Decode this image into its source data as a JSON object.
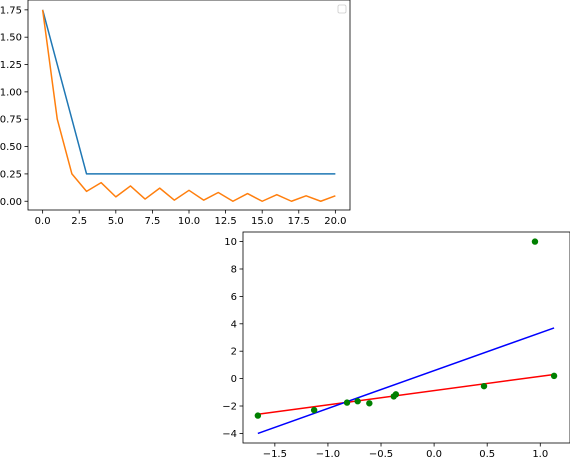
{
  "chart_data": [
    {
      "type": "line",
      "title": "",
      "xlabel": "",
      "ylabel": "",
      "xlim": [
        -1,
        21
      ],
      "ylim": [
        -0.08,
        1.84
      ],
      "grid": false,
      "legend": {
        "placement": "upper-right",
        "entries": []
      },
      "xticks": [
        0.0,
        2.5,
        5.0,
        7.5,
        10.0,
        12.5,
        15.0,
        17.5,
        20.0
      ],
      "xtick_labels": [
        "0.0",
        "2.5",
        "5.0",
        "7.5",
        "10.0",
        "12.5",
        "15.0",
        "17.5",
        "20.0"
      ],
      "yticks": [
        0.0,
        0.25,
        0.5,
        0.75,
        1.0,
        1.25,
        1.5,
        1.75
      ],
      "ytick_labels": [
        "0.00",
        "0.25",
        "0.50",
        "0.75",
        "1.00",
        "1.25",
        "1.50",
        "1.75"
      ],
      "series": [
        {
          "color": "#1f77b4",
          "x": [
            0,
            1,
            2,
            3,
            4,
            5,
            6,
            7,
            8,
            9,
            10,
            11,
            12,
            13,
            14,
            15,
            16,
            17,
            18,
            19,
            20
          ],
          "y": [
            1.75,
            1.25,
            0.75,
            0.25,
            0.25,
            0.25,
            0.25,
            0.25,
            0.25,
            0.25,
            0.25,
            0.25,
            0.25,
            0.25,
            0.25,
            0.25,
            0.25,
            0.25,
            0.25,
            0.25,
            0.25
          ]
        },
        {
          "color": "#ff7f0e",
          "x": [
            0,
            1,
            2,
            3,
            4,
            5,
            6,
            7,
            8,
            9,
            10,
            11,
            12,
            13,
            14,
            15,
            16,
            17,
            18,
            19,
            20
          ],
          "y": [
            1.75,
            0.75,
            0.25,
            0.09,
            0.17,
            0.04,
            0.14,
            0.02,
            0.12,
            0.01,
            0.1,
            0.01,
            0.08,
            0.0,
            0.07,
            0.0,
            0.06,
            0.0,
            0.05,
            0.0,
            0.05
          ]
        }
      ]
    },
    {
      "type": "scatter",
      "title": "",
      "xlabel": "",
      "ylabel": "",
      "xlim": [
        -1.8,
        1.28
      ],
      "ylim": [
        -4.7,
        10.7
      ],
      "grid": false,
      "xticks": [
        -1.5,
        -1.0,
        -0.5,
        0.0,
        0.5,
        1.0
      ],
      "xtick_labels": [
        "−1.5",
        "−1.0",
        "−0.5",
        "0.0",
        "0.5",
        "1.0"
      ],
      "yticks": [
        -4,
        -2,
        0,
        2,
        4,
        6,
        8,
        10
      ],
      "ytick_labels": [
        "−4",
        "−2",
        "0",
        "2",
        "4",
        "6",
        "8",
        "10"
      ],
      "points": {
        "color": "#008000",
        "x": [
          -1.66,
          -1.13,
          -0.82,
          -0.72,
          -0.61,
          -0.38,
          -0.36,
          0.47,
          0.95,
          1.13
        ],
        "y": [
          -2.7,
          -2.3,
          -1.75,
          -1.65,
          -1.8,
          -1.3,
          -1.15,
          -0.55,
          10.0,
          0.2
        ]
      },
      "lines": [
        {
          "color": "#ff0000",
          "x": [
            -1.66,
            1.13
          ],
          "y": [
            -2.6,
            0.3
          ]
        },
        {
          "color": "#0000ff",
          "x": [
            -1.66,
            1.13
          ],
          "y": [
            -4.0,
            3.7
          ]
        }
      ]
    }
  ]
}
